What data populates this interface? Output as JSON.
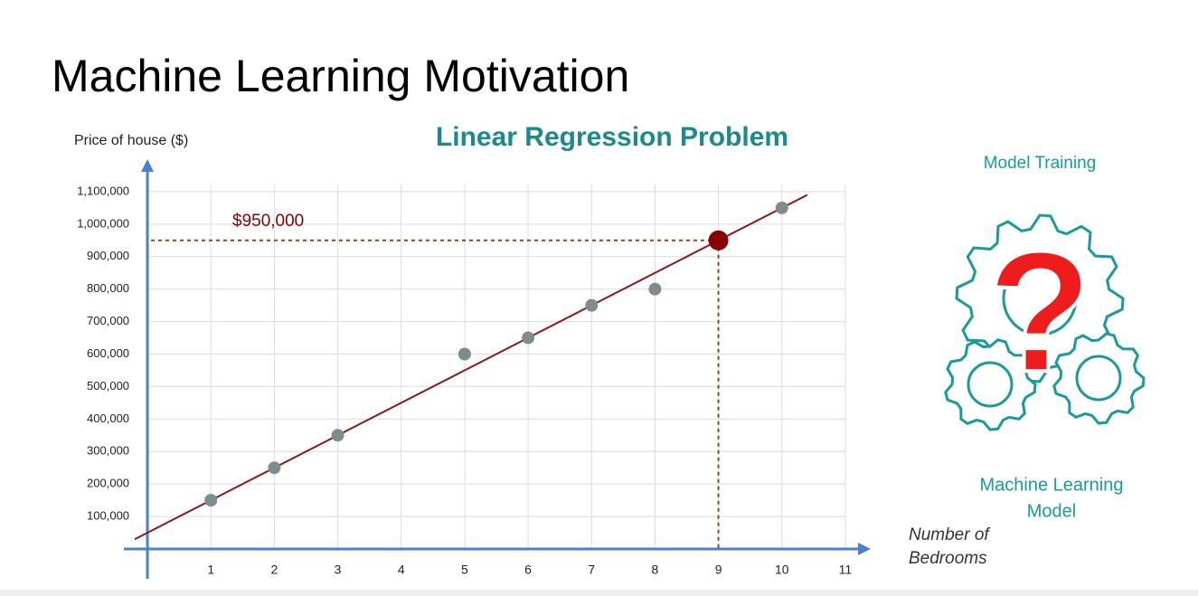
{
  "slide_title": "Machine Learning Motivation",
  "side_panel": {
    "top_label": "Model Training",
    "icon_symbol": "?",
    "bottom_label": [
      "Machine Learning",
      "Model"
    ]
  },
  "chart_data": {
    "type": "scatter",
    "title": "Linear Regression Problem",
    "y_label": "Price of house ($)",
    "x_label": [
      "Number of",
      "Bedrooms"
    ],
    "series": [
      {
        "color": "#7f8c8d",
        "x": [
          1,
          2,
          3,
          5,
          6,
          7,
          8,
          10
        ],
        "values": [
          150000,
          250000,
          350000,
          600000,
          650000,
          750000,
          800000,
          1050000
        ]
      }
    ],
    "fit_line": {
      "color": "#8b1a1a",
      "x": [
        -0.2,
        10.4
      ],
      "values": [
        30000,
        1090000
      ]
    },
    "prediction": {
      "x": 9,
      "value": 950000,
      "label": "$950,000",
      "color": "#8b0000"
    },
    "xlim": [
      -0.3,
      11.4
    ],
    "ylim": [
      0,
      1200000
    ],
    "xticks": [
      1,
      2,
      3,
      4,
      5,
      6,
      7,
      8,
      9,
      10,
      11
    ],
    "yticks": [
      {
        "value": 100000,
        "label": "100,000"
      },
      {
        "value": 200000,
        "label": "200,000"
      },
      {
        "value": 300000,
        "label": "300,000"
      },
      {
        "value": 400000,
        "label": "400,000"
      },
      {
        "value": 500000,
        "label": "500,000"
      },
      {
        "value": 600000,
        "label": "600,000"
      },
      {
        "value": 700000,
        "label": "700,000"
      },
      {
        "value": 800000,
        "label": "800,000"
      },
      {
        "value": 900000,
        "label": "900,000"
      },
      {
        "value": 1000000,
        "label": "1,000,000"
      },
      {
        "value": 1100000,
        "label": "1,100,000"
      }
    ],
    "grid": true,
    "axis_color": "#4a7fd8"
  }
}
